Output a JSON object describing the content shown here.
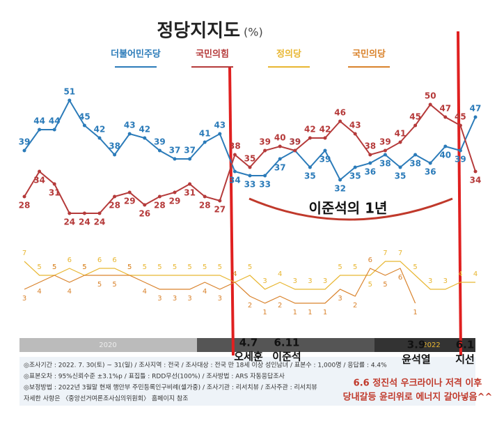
{
  "chart_data": [
    {
      "type": "line",
      "title": "정당지지도",
      "unit": "(%)",
      "categories": [
        null,
        null,
        null,
        null,
        null,
        null,
        null,
        null,
        null,
        null,
        null,
        null,
        null,
        null,
        null,
        null,
        null,
        null,
        null,
        null,
        null,
        null,
        null,
        null,
        null,
        null,
        null,
        null,
        null,
        null,
        null
      ],
      "ylim": [
        20,
        55
      ],
      "series": [
        {
          "name": "더불어민주당",
          "color": "#2b7bb9",
          "values": [
            39,
            44,
            44,
            51,
            45,
            42,
            38,
            43,
            42,
            39,
            37,
            37,
            41,
            43,
            34,
            33,
            33,
            37,
            39,
            35,
            39,
            32,
            35,
            36,
            38,
            35,
            38,
            36,
            40,
            39,
            47
          ]
        },
        {
          "name": "국민의힘",
          "color": "#b53a3a",
          "values": [
            28,
            34,
            31,
            24,
            24,
            24,
            28,
            29,
            26,
            28,
            29,
            31,
            28,
            27,
            38,
            35,
            39,
            40,
            39,
            42,
            42,
            46,
            43,
            38,
            39,
            41,
            45,
            50,
            47,
            45,
            34
          ]
        }
      ]
    },
    {
      "type": "line",
      "ylim": [
        0,
        8
      ],
      "series": [
        {
          "name": "정의당",
          "color": "#e8b631",
          "values": [
            7,
            5,
            5,
            6,
            5,
            6,
            6,
            5,
            5,
            5,
            5,
            5,
            5,
            5,
            4,
            5,
            3,
            4,
            3,
            3,
            3,
            5,
            5,
            5,
            7,
            7,
            5,
            3,
            3,
            4,
            4
          ]
        },
        {
          "name": "국민의당",
          "color": "#d9822b",
          "values": [
            3,
            4,
            5,
            4,
            5,
            5,
            5,
            5,
            4,
            3,
            3,
            3,
            4,
            3,
            4,
            2,
            1,
            2,
            1,
            1,
            1,
            3,
            2,
            6,
            5,
            6,
            1,
            null,
            null,
            null,
            null
          ]
        }
      ]
    }
  ],
  "timeline": [
    "2020",
    "2022"
  ],
  "annotations": {
    "era": "이준석의 1년",
    "events": [
      {
        "date": "4.7",
        "name": "오세훈"
      },
      {
        "date": "6.11",
        "name": "이준석"
      },
      {
        "date": "3.9",
        "name": "윤석열"
      },
      {
        "date": "6.1",
        "name": "지선"
      }
    ],
    "comment": [
      "6.6 정진석 우크라이나 저격 이후",
      "당내갈등 윤리위로 에너지 갈아넣음^^"
    ]
  },
  "footnotes": [
    "◎조사기간 : 2022. 7. 30(토) ~ 31(일) / 조사지역 : 전국 / 조사대상 : 전국 만 18세 이상 성인남녀 / 표본수 : 1,000명 / 응답률 : 4.4%",
    "◎표본오차 : 95%신뢰수준 ±3.1%p / 표집틀 : RDD무선(100%) / 조사방법 : ARS 자동응답조사",
    "◎보정방법 : 2022년 3월말 현재 행안부 주민등록인구비례(셀가중) / 조사기관 : 리서치뷰 / 조사주관 : 리서치뷰",
    "자세한 사항은 〈중앙선거여론조사심의위원회〉 홈페이지 참조"
  ]
}
